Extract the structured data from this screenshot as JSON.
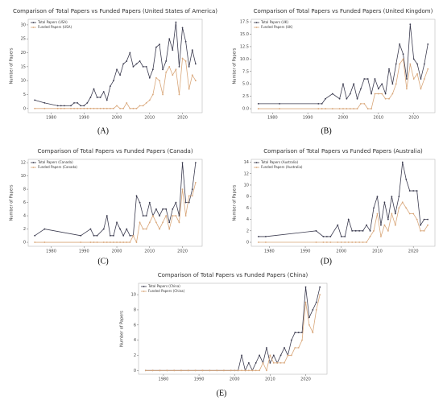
{
  "chart_data": [
    {
      "type": "line",
      "label": "(A)",
      "title": "Comparison of Total Papers vs Funded Papers (United States of America)",
      "y_label": "Number of Papers",
      "x": [
        1975,
        1978,
        1982,
        1983,
        1984,
        1986,
        1987,
        1988,
        1989,
        1990,
        1991,
        1992,
        1993,
        1994,
        1995,
        1996,
        1997,
        1998,
        1999,
        2000,
        2001,
        2002,
        2003,
        2004,
        2005,
        2006,
        2007,
        2008,
        2009,
        2010,
        2011,
        2012,
        2013,
        2014,
        2015,
        2016,
        2017,
        2018,
        2019,
        2020,
        2021,
        2022,
        2023,
        2024
      ],
      "series": [
        {
          "name": "Total Papers (USA)",
          "color": "#3b3b4f",
          "values": [
            3,
            2,
            1,
            1,
            1,
            1,
            2,
            2,
            1,
            1,
            2,
            4,
            7,
            4,
            4,
            6,
            3,
            8,
            10,
            14,
            12,
            16,
            17,
            20,
            15,
            16,
            17,
            15,
            15,
            11,
            14,
            22,
            23,
            14,
            17,
            25,
            21,
            31,
            15,
            29,
            24,
            15,
            21,
            16
          ]
        },
        {
          "name": "Funded Papers (USA)",
          "color": "#d9a77a",
          "values": [
            0,
            0,
            0,
            0,
            0,
            0,
            0,
            0,
            0,
            0,
            0,
            0,
            0,
            0,
            0,
            0,
            0,
            0,
            0,
            1,
            0,
            0,
            2,
            0,
            0,
            0,
            1,
            1,
            2,
            3,
            5,
            11,
            10,
            5,
            13,
            15,
            12,
            14,
            5,
            18,
            17,
            7,
            12,
            10
          ]
        }
      ],
      "xlim": [
        1973,
        2026
      ],
      "xticks": [
        1980,
        1990,
        2000,
        2010,
        2020
      ],
      "ylim": [
        -1.5,
        32
      ],
      "yticks": [
        0,
        5,
        10,
        15,
        20,
        25,
        30
      ],
      "legend": "upper-left"
    },
    {
      "type": "line",
      "label": "(B)",
      "title": "Comparison of Total Papers vs Funded Papers (United Kingdom)",
      "y_label": "Number of Papers",
      "x": [
        1976,
        1982,
        1993,
        1994,
        1995,
        1997,
        1999,
        2000,
        2001,
        2002,
        2003,
        2004,
        2005,
        2006,
        2007,
        2008,
        2009,
        2010,
        2011,
        2012,
        2013,
        2014,
        2015,
        2016,
        2017,
        2018,
        2019,
        2020,
        2021,
        2022,
        2023,
        2024
      ],
      "series": [
        {
          "name": "Total Papers (UK)",
          "color": "#3b3b4f",
          "values": [
            1,
            1,
            1,
            1,
            2,
            3,
            2,
            5,
            2,
            3,
            5,
            2,
            4,
            6,
            6,
            3,
            6,
            4,
            5,
            3,
            8,
            5,
            9,
            13,
            11,
            6,
            17,
            10,
            9,
            6,
            9,
            13
          ]
        },
        {
          "name": "Funded Papers (UK)",
          "color": "#d9a77a",
          "values": [
            0,
            0,
            0,
            0,
            0,
            0,
            0,
            0,
            0,
            0,
            0,
            0,
            1,
            1,
            0,
            0,
            3,
            3,
            3,
            2,
            2,
            3,
            5,
            9,
            10,
            4,
            9,
            6,
            7,
            4,
            6,
            8
          ]
        }
      ],
      "xlim": [
        1974,
        2026
      ],
      "xticks": [
        1980,
        1990,
        2000,
        2010,
        2020
      ],
      "ylim": [
        -0.8,
        18
      ],
      "yticks": [
        {
          "value": 0,
          "label": "0.0"
        },
        {
          "value": 2.5,
          "label": "2.5"
        },
        {
          "value": 5,
          "label": "5.0"
        },
        {
          "value": 7.5,
          "label": "7.5"
        },
        {
          "value": 10,
          "label": "10.0"
        },
        {
          "value": 12.5,
          "label": "12.5"
        },
        {
          "value": 15,
          "label": "15.0"
        },
        {
          "value": 17.5,
          "label": "17.5"
        }
      ],
      "legend": "upper-left"
    },
    {
      "type": "line",
      "label": "(C)",
      "title": "Comparison of Total Papers vs Funded Papers (Canada)",
      "y_label": "Number of Papers",
      "x": [
        1975,
        1978,
        1989,
        1992,
        1993,
        1994,
        1996,
        1997,
        1998,
        1999,
        2000,
        2001,
        2002,
        2003,
        2004,
        2005,
        2006,
        2007,
        2008,
        2009,
        2010,
        2011,
        2012,
        2013,
        2014,
        2015,
        2016,
        2017,
        2018,
        2019,
        2020,
        2021,
        2022,
        2023,
        2024
      ],
      "series": [
        {
          "name": "Total Papers (Canada)",
          "color": "#3b3b4f",
          "values": [
            1,
            2,
            1,
            2,
            1,
            1,
            2,
            4,
            1,
            1,
            3,
            2,
            1,
            2,
            1,
            1,
            7,
            6,
            4,
            4,
            6,
            4,
            5,
            4,
            5,
            5,
            3,
            5,
            6,
            4,
            12,
            6,
            6,
            8,
            12
          ]
        },
        {
          "name": "Funded Papers (Canada)",
          "color": "#d9a77a",
          "values": [
            0,
            0,
            0,
            0,
            0,
            0,
            0,
            0,
            0,
            0,
            0,
            0,
            0,
            0,
            0,
            1,
            0,
            3,
            2,
            2,
            3,
            4,
            3,
            2,
            3,
            4,
            2,
            4,
            4,
            3,
            8,
            4,
            7,
            7,
            9
          ]
        }
      ],
      "xlim": [
        1973,
        2026
      ],
      "xticks": [
        1980,
        1990,
        2000,
        2010,
        2020
      ],
      "ylim": [
        -0.6,
        12.5
      ],
      "yticks": [
        0,
        2,
        4,
        6,
        8,
        10,
        12
      ],
      "legend": "upper-left"
    },
    {
      "type": "line",
      "label": "(D)",
      "title": "Comparison of Total Papers vs Funded Papers (Australia)",
      "y_label": "Number of Papers",
      "x": [
        1977,
        1979,
        1993,
        1995,
        1996,
        1997,
        1999,
        2000,
        2001,
        2002,
        2003,
        2004,
        2005,
        2006,
        2007,
        2008,
        2009,
        2010,
        2011,
        2012,
        2013,
        2014,
        2015,
        2016,
        2017,
        2018,
        2019,
        2020,
        2021,
        2022,
        2023,
        2024
      ],
      "series": [
        {
          "name": "Total Papers (Australia)",
          "color": "#3b3b4f",
          "values": [
            1,
            1,
            2,
            1,
            1,
            1,
            3,
            1,
            1,
            4,
            2,
            2,
            2,
            2,
            3,
            2,
            6,
            8,
            3,
            7,
            4,
            8,
            5,
            8,
            14,
            11,
            9,
            9,
            9,
            3,
            4,
            4
          ]
        },
        {
          "name": "Funded Papers (Australia)",
          "color": "#d9a77a",
          "values": [
            0,
            0,
            0,
            0,
            0,
            0,
            0,
            0,
            0,
            0,
            0,
            0,
            0,
            0,
            0,
            1,
            2,
            5,
            1,
            3,
            2,
            5,
            3,
            6,
            7,
            6,
            5,
            5,
            4,
            2,
            2,
            3
          ]
        }
      ],
      "xlim": [
        1975,
        2026
      ],
      "xticks": [
        1980,
        1990,
        2000,
        2010,
        2020
      ],
      "ylim": [
        -0.7,
        14.5
      ],
      "yticks": [
        0,
        2,
        4,
        6,
        8,
        10,
        12,
        14
      ],
      "legend": "upper-left"
    },
    {
      "type": "line",
      "label": "(E)",
      "title": "Comparison of Total Papers vs Funded Papers (China)",
      "y_label": "Number of Papers",
      "x": [
        1975,
        1977,
        1979,
        1981,
        1983,
        1985,
        1987,
        1989,
        1991,
        1993,
        1995,
        1997,
        1999,
        2000,
        2001,
        2002,
        2003,
        2004,
        2005,
        2006,
        2007,
        2008,
        2009,
        2010,
        2011,
        2012,
        2013,
        2014,
        2015,
        2016,
        2017,
        2018,
        2019,
        2020,
        2021,
        2022,
        2023,
        2024
      ],
      "series": [
        {
          "name": "Total Papers (China)",
          "color": "#3b3b4f",
          "values": [
            0,
            0,
            0,
            0,
            0,
            0,
            0,
            0,
            0,
            0,
            0,
            0,
            0,
            0,
            0,
            2,
            0,
            1,
            0,
            1,
            2,
            1,
            3,
            1,
            2,
            1,
            2,
            3,
            2,
            4,
            5,
            5,
            5,
            11,
            7,
            8,
            9,
            11
          ]
        },
        {
          "name": "Funded Papers (China)",
          "color": "#d9a77a",
          "values": [
            0,
            0,
            0,
            0,
            0,
            0,
            0,
            0,
            0,
            0,
            0,
            0,
            0,
            0,
            0,
            0,
            0,
            0,
            0,
            0,
            0,
            1,
            0,
            2,
            1,
            1,
            1,
            1,
            2,
            2,
            3,
            3,
            4,
            9,
            6,
            5,
            8,
            10
          ]
        }
      ],
      "xlim": [
        1973,
        2026
      ],
      "xticks": [
        1980,
        1990,
        2000,
        2010,
        2020
      ],
      "ylim": [
        -0.5,
        11.5
      ],
      "yticks": [
        0,
        2,
        4,
        6,
        8,
        10
      ],
      "legend": "upper-left"
    }
  ]
}
